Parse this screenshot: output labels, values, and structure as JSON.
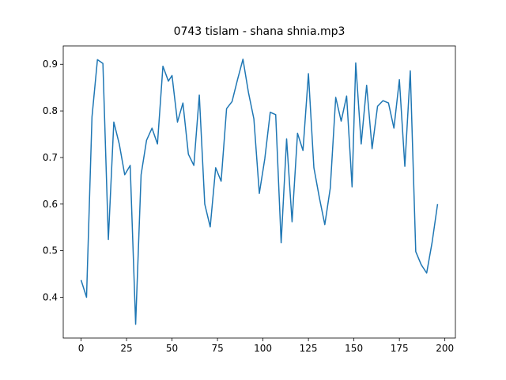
{
  "chart_data": {
    "type": "line",
    "title": "0743 tislam - shana shnia.mp3",
    "x": [
      0,
      3,
      6,
      9,
      12,
      15,
      18,
      21,
      24,
      27,
      30,
      33,
      36,
      39,
      42,
      45,
      48,
      50,
      53,
      56,
      59,
      62,
      65,
      68,
      71,
      74,
      77,
      80,
      83,
      86,
      89,
      92,
      95,
      98,
      101,
      104,
      107,
      110,
      113,
      116,
      119,
      122,
      125,
      128,
      131,
      134,
      137,
      140,
      143,
      146,
      149,
      151,
      154,
      157,
      160,
      163,
      166,
      169,
      172,
      175,
      178,
      181,
      184,
      187,
      190,
      193,
      196
    ],
    "series": [
      {
        "color": "#1f77b4",
        "values": [
          0.437,
          0.4,
          0.787,
          0.91,
          0.902,
          0.524,
          0.776,
          0.729,
          0.663,
          0.683,
          0.342,
          0.663,
          0.737,
          0.763,
          0.729,
          0.896,
          0.864,
          0.876,
          0.776,
          0.817,
          0.707,
          0.683,
          0.834,
          0.6,
          0.551,
          0.678,
          0.649,
          0.805,
          0.82,
          0.867,
          0.911,
          0.84,
          0.783,
          0.623,
          0.697,
          0.797,
          0.792,
          0.517,
          0.74,
          0.562,
          0.752,
          0.715,
          0.88,
          0.678,
          0.614,
          0.556,
          0.634,
          0.829,
          0.778,
          0.832,
          0.637,
          0.903,
          0.729,
          0.855,
          0.719,
          0.81,
          0.822,
          0.817,
          0.763,
          0.867,
          0.681,
          0.886,
          0.498,
          0.47,
          0.452,
          0.518,
          0.6
        ]
      }
    ],
    "xlim": [
      -9.8,
      205.8
    ],
    "ylim": [
      0.3125,
      0.9395
    ],
    "xticks": [
      0,
      25,
      50,
      75,
      100,
      125,
      150,
      175,
      200
    ],
    "yticks": [
      0.4,
      0.5,
      0.6,
      0.7,
      0.8,
      0.9
    ]
  }
}
